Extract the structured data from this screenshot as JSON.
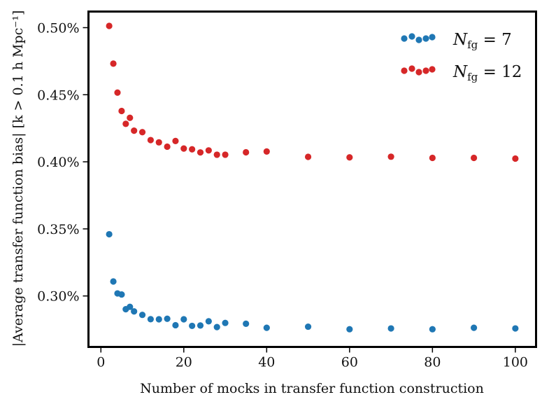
{
  "chart_data": {
    "type": "scatter",
    "title": "",
    "xlabel": "Number of mocks in transfer function construction",
    "ylabel": "|Average transfer function bias| [k > 0.1 h Mpc⁻¹]",
    "xlim": [
      -3,
      105
    ],
    "ylim": [
      0.00262,
      0.00512
    ],
    "x_ticks": [
      0,
      20,
      40,
      60,
      80,
      100
    ],
    "x_tick_labels": [
      "0",
      "20",
      "40",
      "60",
      "80",
      "100"
    ],
    "y_ticks": [
      0.003,
      0.0035,
      0.004,
      0.0045,
      0.005
    ],
    "y_tick_labels": [
      "0.30%",
      "0.35%",
      "0.40%",
      "0.45%",
      "0.50%"
    ],
    "grid": false,
    "legend_position": "top-right",
    "series": [
      {
        "name": "N_fg = 7",
        "legend_main": "N",
        "legend_sub": "fg",
        "legend_rest": " = 7",
        "color": "#1f77b4",
        "x": [
          2,
          3,
          4,
          5,
          6,
          7,
          8,
          10,
          12,
          14,
          16,
          18,
          20,
          22,
          24,
          26,
          28,
          30,
          35,
          40,
          50,
          60,
          70,
          80,
          90,
          100
        ],
        "y": [
          0.00346,
          0.003108,
          0.003019,
          0.003011,
          0.002901,
          0.002919,
          0.002885,
          0.002859,
          0.002827,
          0.002826,
          0.00283,
          0.002782,
          0.002826,
          0.002777,
          0.00278,
          0.002811,
          0.002768,
          0.002799,
          0.002793,
          0.002763,
          0.002771,
          0.002752,
          0.002758,
          0.002752,
          0.002763,
          0.002758
        ]
      },
      {
        "name": "N_fg = 12",
        "legend_main": "N",
        "legend_sub": "fg",
        "legend_rest": " = 12",
        "color": "#d62728",
        "x": [
          2,
          3,
          4,
          5,
          6,
          7,
          8,
          10,
          12,
          14,
          16,
          18,
          20,
          22,
          24,
          26,
          28,
          30,
          35,
          40,
          50,
          60,
          70,
          80,
          90,
          100
        ],
        "y": [
          0.005013,
          0.004732,
          0.004516,
          0.004379,
          0.004283,
          0.004328,
          0.004232,
          0.004221,
          0.004162,
          0.004145,
          0.004113,
          0.004155,
          0.004099,
          0.004093,
          0.00407,
          0.004085,
          0.004053,
          0.004053,
          0.004071,
          0.004077,
          0.004037,
          0.004033,
          0.004038,
          0.004029,
          0.004029,
          0.004024
        ]
      }
    ]
  }
}
